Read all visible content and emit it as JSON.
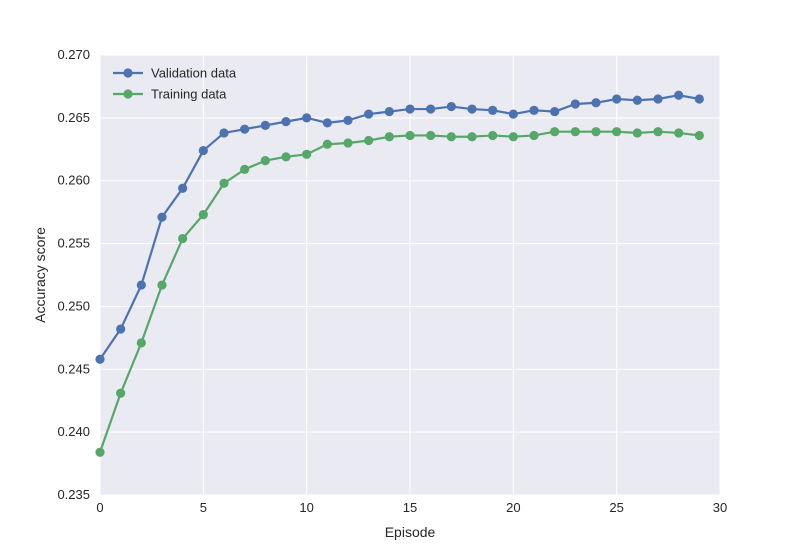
{
  "chart_data": {
    "type": "line",
    "title": "",
    "xlabel": "Episode",
    "ylabel": "Accuracy score",
    "xlim": [
      0,
      30
    ],
    "ylim": [
      0.235,
      0.27
    ],
    "xticks": [
      "0",
      "5",
      "10",
      "15",
      "20",
      "25",
      "30"
    ],
    "yticks": [
      "0.235",
      "0.240",
      "0.245",
      "0.250",
      "0.255",
      "0.260",
      "0.265",
      "0.270"
    ],
    "grid": true,
    "legend_position": "top-left",
    "x": [
      0,
      1,
      2,
      3,
      4,
      5,
      6,
      7,
      8,
      9,
      10,
      11,
      12,
      13,
      14,
      15,
      16,
      17,
      18,
      19,
      20,
      21,
      22,
      23,
      24,
      25,
      26,
      27,
      28,
      29
    ],
    "series": [
      {
        "name": "Validation data",
        "color": "#4c72b0",
        "values": [
          0.2458,
          0.2482,
          0.2517,
          0.2571,
          0.2594,
          0.2624,
          0.2638,
          0.2641,
          0.2644,
          0.2647,
          0.265,
          0.2646,
          0.2648,
          0.2653,
          0.2655,
          0.2657,
          0.2657,
          0.2659,
          0.2657,
          0.2656,
          0.2653,
          0.2656,
          0.2655,
          0.2661,
          0.2662,
          0.2665,
          0.2664,
          0.2665,
          0.2668,
          0.2665
        ]
      },
      {
        "name": "Training data",
        "color": "#55a868",
        "values": [
          0.2384,
          0.2431,
          0.2471,
          0.2517,
          0.2554,
          0.2573,
          0.2598,
          0.2609,
          0.2616,
          0.2619,
          0.2621,
          0.2629,
          0.263,
          0.2632,
          0.2635,
          0.2636,
          0.2636,
          0.2635,
          0.2635,
          0.2636,
          0.2635,
          0.2636,
          0.2639,
          0.2639,
          0.2639,
          0.2639,
          0.2638,
          0.2639,
          0.2638,
          0.2636
        ]
      }
    ]
  }
}
